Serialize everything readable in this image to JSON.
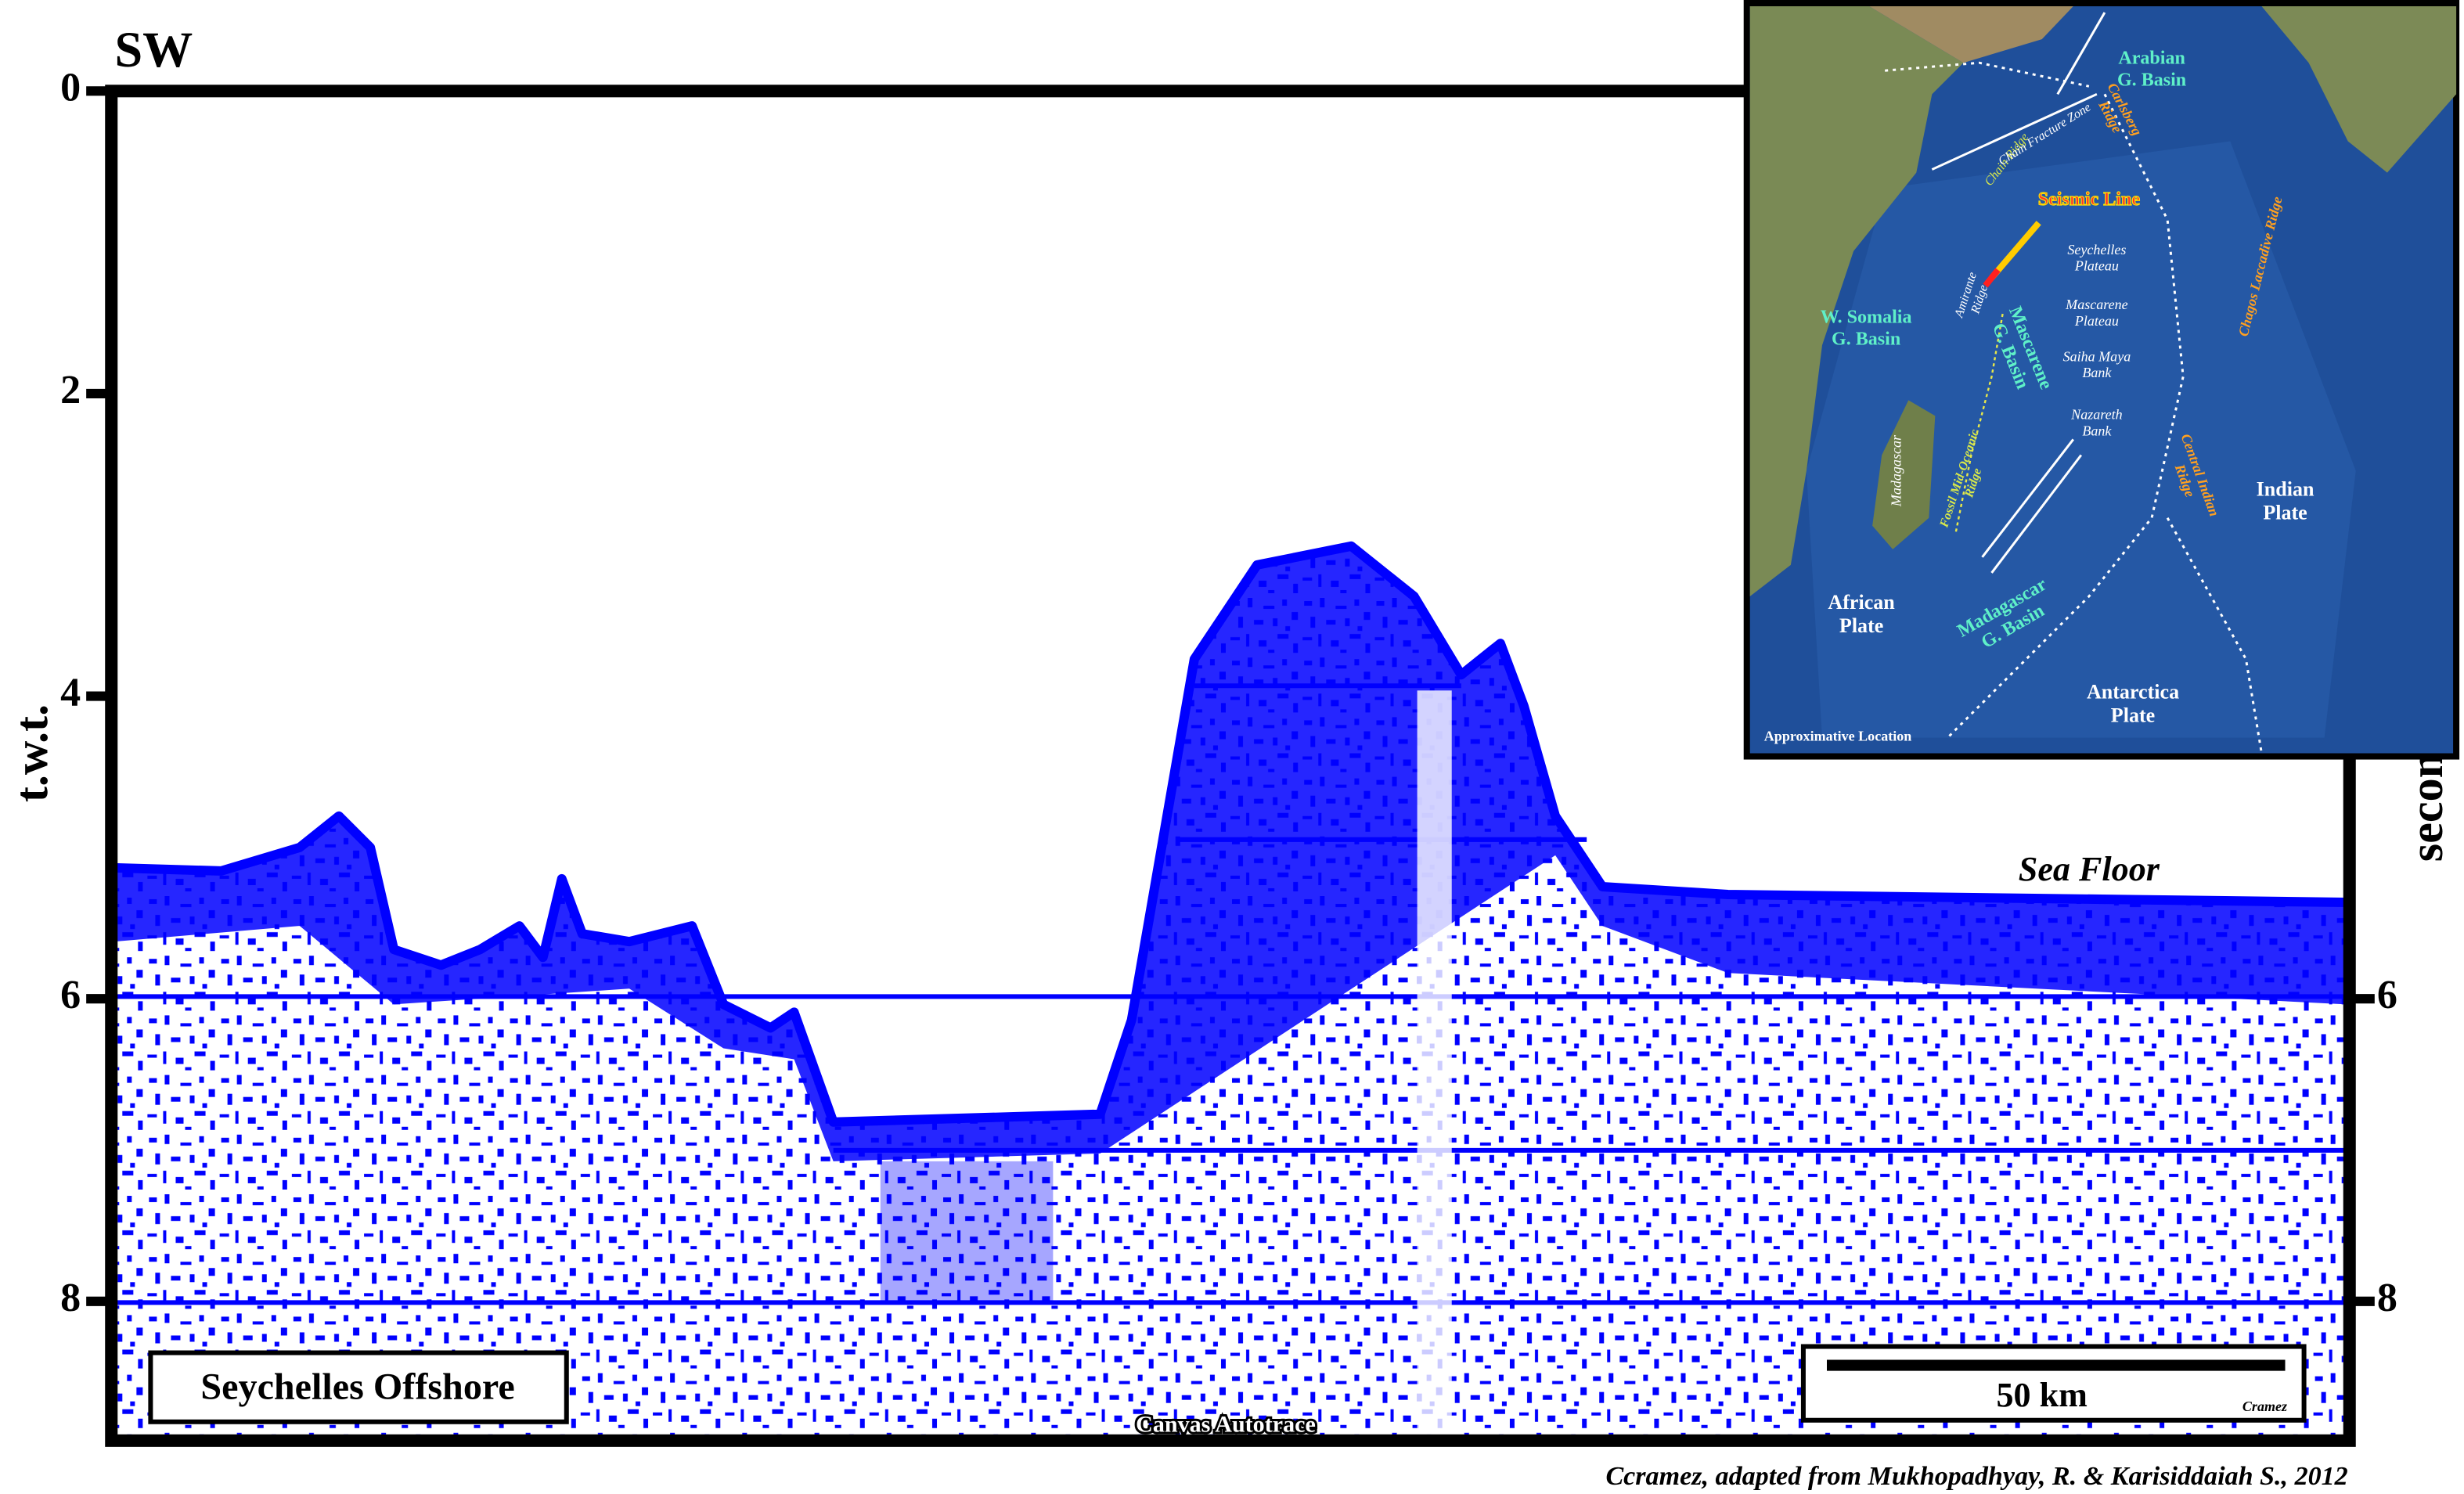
{
  "figure": {
    "title": "SW",
    "y_label_left": "t.w.t.",
    "y_label_right": "seconds",
    "axis": {
      "ylim": [
        0,
        8.9
      ],
      "left_ticks": [
        0,
        2,
        4,
        6,
        8
      ],
      "right_ticks": [
        6,
        8
      ]
    },
    "annotations": {
      "sea_floor": "Sea Floor",
      "location": "Seychelles Offshore",
      "autotrace": "Canvas Autotrace"
    },
    "scale_bar": {
      "label": "50 km",
      "signature": "Cramez"
    }
  },
  "credit": "Ccramez, adapted from Mukhopadhyay, R. & Karisiddaiah S., 2012",
  "map": {
    "labels": [
      {
        "lines": [
          "Arabian",
          "G. Basin"
        ]
      },
      {
        "lines": [
          "Carlsberg",
          "Ridge"
        ]
      },
      {
        "lines": [
          "Chain Ridge"
        ]
      },
      {
        "lines": [
          "Chain Fracture Zone"
        ]
      },
      {
        "lines": [
          "Seismic Line"
        ]
      },
      {
        "lines": [
          "Seychelles",
          "Plateau"
        ]
      },
      {
        "lines": [
          "Amirante",
          "Ridge"
        ]
      },
      {
        "lines": [
          "Mascarene",
          "Plateau"
        ]
      },
      {
        "lines": [
          "Mascarene",
          "G. Basin"
        ]
      },
      {
        "lines": [
          "Saiha Maya",
          "Bank"
        ]
      },
      {
        "lines": [
          "Nazareth",
          "Bank"
        ]
      },
      {
        "lines": [
          "W. Somalia",
          "G. Basin"
        ]
      },
      {
        "lines": [
          "Madagascar"
        ]
      },
      {
        "lines": [
          "Fossil Mid-Oceanic",
          "Ridge"
        ]
      },
      {
        "lines": [
          "Chagos Laccadive Ridge"
        ]
      },
      {
        "lines": [
          "Central Indian",
          "Ridge"
        ]
      },
      {
        "lines": [
          "Indian",
          "Plate"
        ]
      },
      {
        "lines": [
          "African",
          "Plate"
        ]
      },
      {
        "lines": [
          "Madagascar",
          "G. Basin"
        ]
      },
      {
        "lines": [
          "Antarctica",
          "Plate"
        ]
      },
      {
        "lines": [
          "Approximative Location"
        ]
      }
    ]
  }
}
